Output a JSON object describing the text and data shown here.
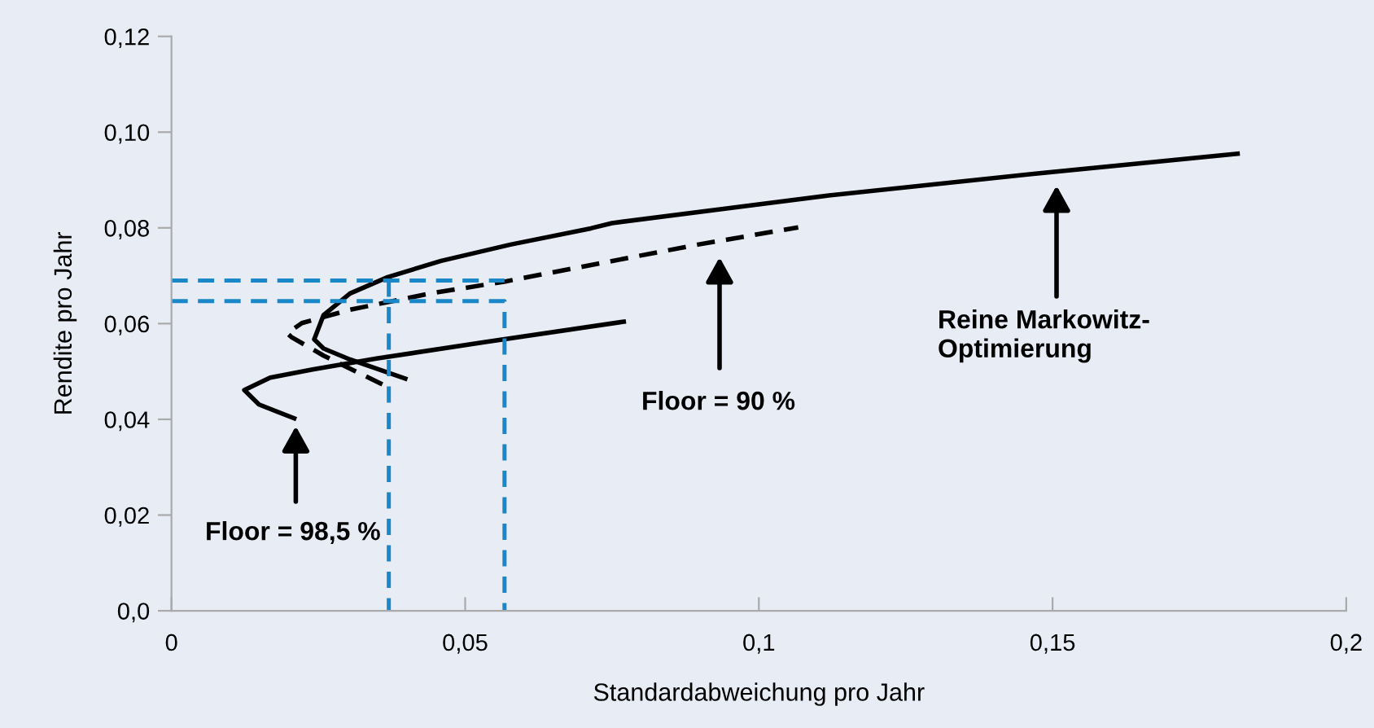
{
  "chart_data": {
    "type": "line",
    "xlabel": "Standardabweichung pro Jahr",
    "ylabel": "Rendite pro Jahr",
    "xlim": [
      0,
      0.2
    ],
    "ylim": [
      0,
      0.12
    ],
    "xticks": [
      0,
      {
        "value": 0.05,
        "label": "0,05"
      },
      {
        "value": 0.1,
        "label": "0,1"
      },
      {
        "value": 0.15,
        "label": "0,15"
      },
      {
        "value": 0.2,
        "label": "0,2"
      }
    ],
    "yticks": [
      {
        "value": 0,
        "label": "0,0"
      },
      {
        "value": 0.02,
        "label": "0,02"
      },
      {
        "value": 0.04,
        "label": "0,04"
      },
      {
        "value": 0.06,
        "label": "0,06"
      },
      {
        "value": 0.08,
        "label": "0,08"
      },
      {
        "value": 0.1,
        "label": "0,10"
      },
      {
        "value": 0.12,
        "label": "0,12"
      }
    ],
    "grid": false,
    "marker": "none",
    "series": [
      {
        "color": "#000000",
        "line_style": "solid",
        "x": [
          0.0398,
          0.0304,
          0.0259,
          0.0243,
          0.0259,
          0.0304,
          0.0368,
          0.0459,
          0.0577,
          0.0714,
          0.075,
          0.1114,
          0.1485,
          0.1815
        ],
        "values": [
          0.0485,
          0.0525,
          0.0548,
          0.0567,
          0.0618,
          0.0663,
          0.0697,
          0.0731,
          0.0765,
          0.0799,
          0.081,
          0.0867,
          0.0915,
          0.0955
        ]
      },
      {
        "color": "#000000",
        "line_style": "dashed",
        "x": [
          0.0359,
          0.0259,
          0.0204,
          0.0197,
          0.0222,
          0.0304,
          0.0441,
          0.0568,
          0.0896,
          0.1067
        ],
        "values": [
          0.0473,
          0.0533,
          0.0572,
          0.058,
          0.0601,
          0.0629,
          0.0663,
          0.0688,
          0.0765,
          0.0801
        ]
      },
      {
        "color": "#000000",
        "line_style": "solid",
        "x": [
          0.077,
          0.0532,
          0.0349,
          0.024,
          0.0168,
          0.0124,
          0.0149,
          0.0209
        ],
        "values": [
          0.0604,
          0.0561,
          0.0527,
          0.0504,
          0.0487,
          0.0461,
          0.0431,
          0.0402
        ]
      },
      {
        "color": "#1a87c9",
        "line_style": "dashed",
        "x": [
          0,
          0.0567
        ],
        "values": [
          0.069,
          0.069
        ]
      },
      {
        "color": "#1a87c9",
        "line_style": "dashed",
        "x": [
          0,
          0.0567,
          0.0567
        ],
        "values": [
          0.0647,
          0.0647,
          0
        ]
      },
      {
        "color": "#1a87c9",
        "line_style": "dashed",
        "x": [
          0.037,
          0.037
        ],
        "values": [
          0.069,
          0
        ]
      }
    ],
    "annotations": [
      "Floor = 98,5 %",
      "Floor = 90 %",
      "Reine Markowitz-\nOptimierung"
    ]
  }
}
